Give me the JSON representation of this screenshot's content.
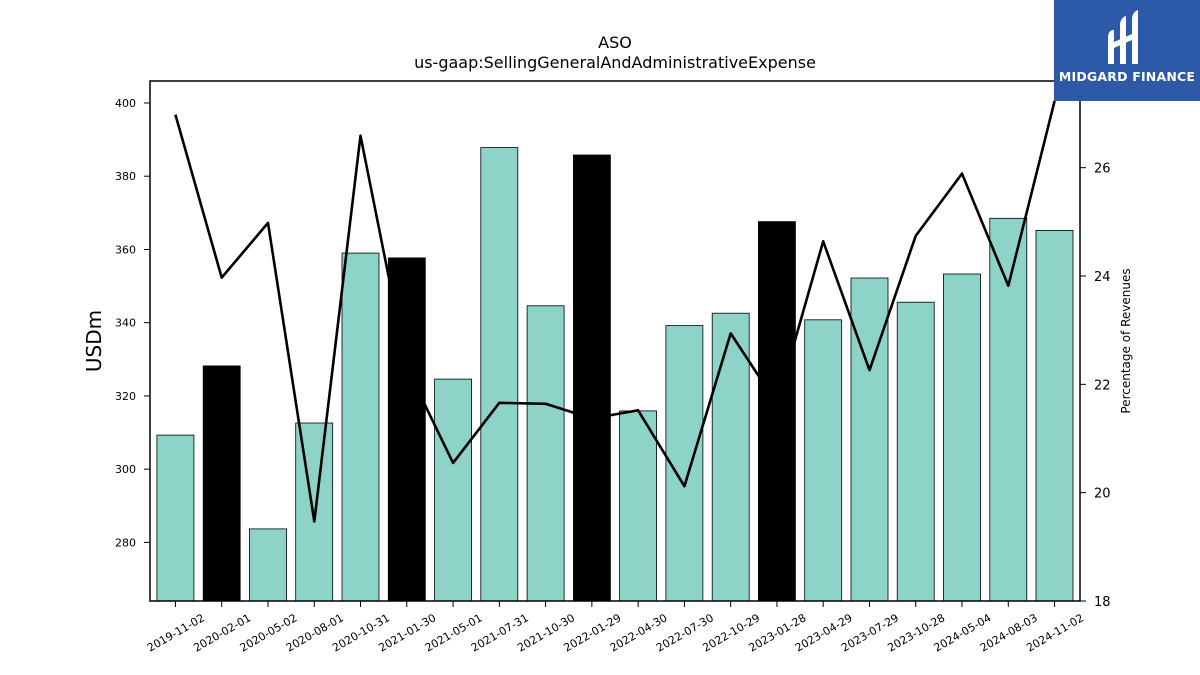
{
  "chart_data": {
    "type": "bar",
    "title": "ASO",
    "subtitle": "us-gaap:SellingGeneralAndAdministrativeExpense",
    "ylabel": "USDm",
    "y2label": "Percentage of Revenues",
    "ylim": [
      264,
      406
    ],
    "y2lim": [
      18,
      27.6
    ],
    "yticks": [
      280,
      300,
      320,
      340,
      360,
      380,
      400
    ],
    "y2ticks": [
      18,
      20,
      22,
      24,
      26
    ],
    "categories": [
      "2019-11-02",
      "2020-02-01",
      "2020-05-02",
      "2020-08-01",
      "2020-10-31",
      "2021-01-30",
      "2021-05-01",
      "2021-07-31",
      "2021-10-30",
      "2022-01-29",
      "2022-04-30",
      "2022-07-30",
      "2022-10-29",
      "2023-01-28",
      "2023-04-29",
      "2023-07-29",
      "2023-10-28",
      "2024-05-04",
      "2024-08-03",
      "2024-11-02"
    ],
    "series": [
      {
        "type": "bar",
        "values": [
          309.3,
          328.2,
          283.7,
          312.6,
          359.0,
          357.7,
          324.6,
          387.8,
          344.6,
          385.8,
          315.9,
          339.2,
          342.6,
          367.6,
          340.8,
          352.2,
          345.6,
          353.3,
          368.5,
          365.2
        ],
        "highlighted": [
          false,
          true,
          false,
          false,
          false,
          true,
          false,
          false,
          false,
          true,
          false,
          false,
          false,
          true,
          false,
          false,
          false,
          false,
          false,
          false
        ]
      },
      {
        "type": "line",
        "axis": "right",
        "values": [
          26.98,
          23.97,
          24.98,
          19.47,
          26.59,
          22.31,
          20.55,
          21.66,
          21.64,
          21.37,
          21.52,
          20.12,
          22.94,
          21.64,
          24.64,
          22.26,
          24.74,
          25.89,
          23.82,
          27.23
        ]
      }
    ],
    "colors": {
      "bar": "#8dd3c7",
      "highlight": "#000000",
      "line": "#000000",
      "edge": "#000000"
    }
  },
  "logo": {
    "text": "MIDGARD FINANCE",
    "background": "#2d5aa8"
  }
}
